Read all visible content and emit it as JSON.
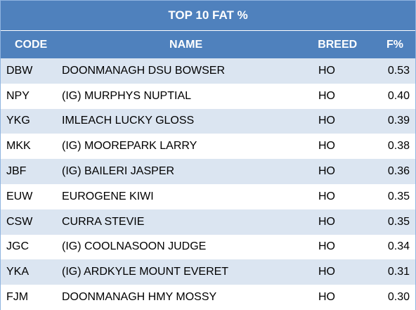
{
  "title": "TOP 10 FAT %",
  "headers": {
    "code": "CODE",
    "name": "NAME",
    "breed": "BREED",
    "fat": "F%"
  },
  "rows": [
    {
      "code": "DBW",
      "name": "DOONMANAGH DSU BOWSER",
      "breed": "HO",
      "fat": "0.53"
    },
    {
      "code": "NPY",
      "name": "(IG) MURPHYS NUPTIAL",
      "breed": "HO",
      "fat": "0.40"
    },
    {
      "code": "YKG",
      "name": "IMLEACH LUCKY GLOSS",
      "breed": "HO",
      "fat": "0.39"
    },
    {
      "code": "MKK",
      "name": "(IG) MOOREPARK LARRY",
      "breed": "HO",
      "fat": "0.38"
    },
    {
      "code": "JBF",
      "name": "(IG) BAILERI JASPER",
      "breed": "HO",
      "fat": "0.36"
    },
    {
      "code": "EUW",
      "name": "EUROGENE KIWI",
      "breed": "HO",
      "fat": "0.35"
    },
    {
      "code": "CSW",
      "name": "CURRA STEVIE",
      "breed": "HO",
      "fat": "0.35"
    },
    {
      "code": "JGC",
      "name": "(IG) COOLNASOON JUDGE",
      "breed": "HO",
      "fat": "0.34"
    },
    {
      "code": "YKA",
      "name": "(IG) ARDKYLE MOUNT EVERET",
      "breed": "HO",
      "fat": "0.31"
    },
    {
      "code": "FJM",
      "name": "DOONMANAGH HMY MOSSY",
      "breed": "HO",
      "fat": "0.30"
    }
  ],
  "colors": {
    "header_bg": "#4f81bd",
    "alt_row_bg": "#dbe5f1",
    "plain_row_bg": "#ffffff"
  }
}
